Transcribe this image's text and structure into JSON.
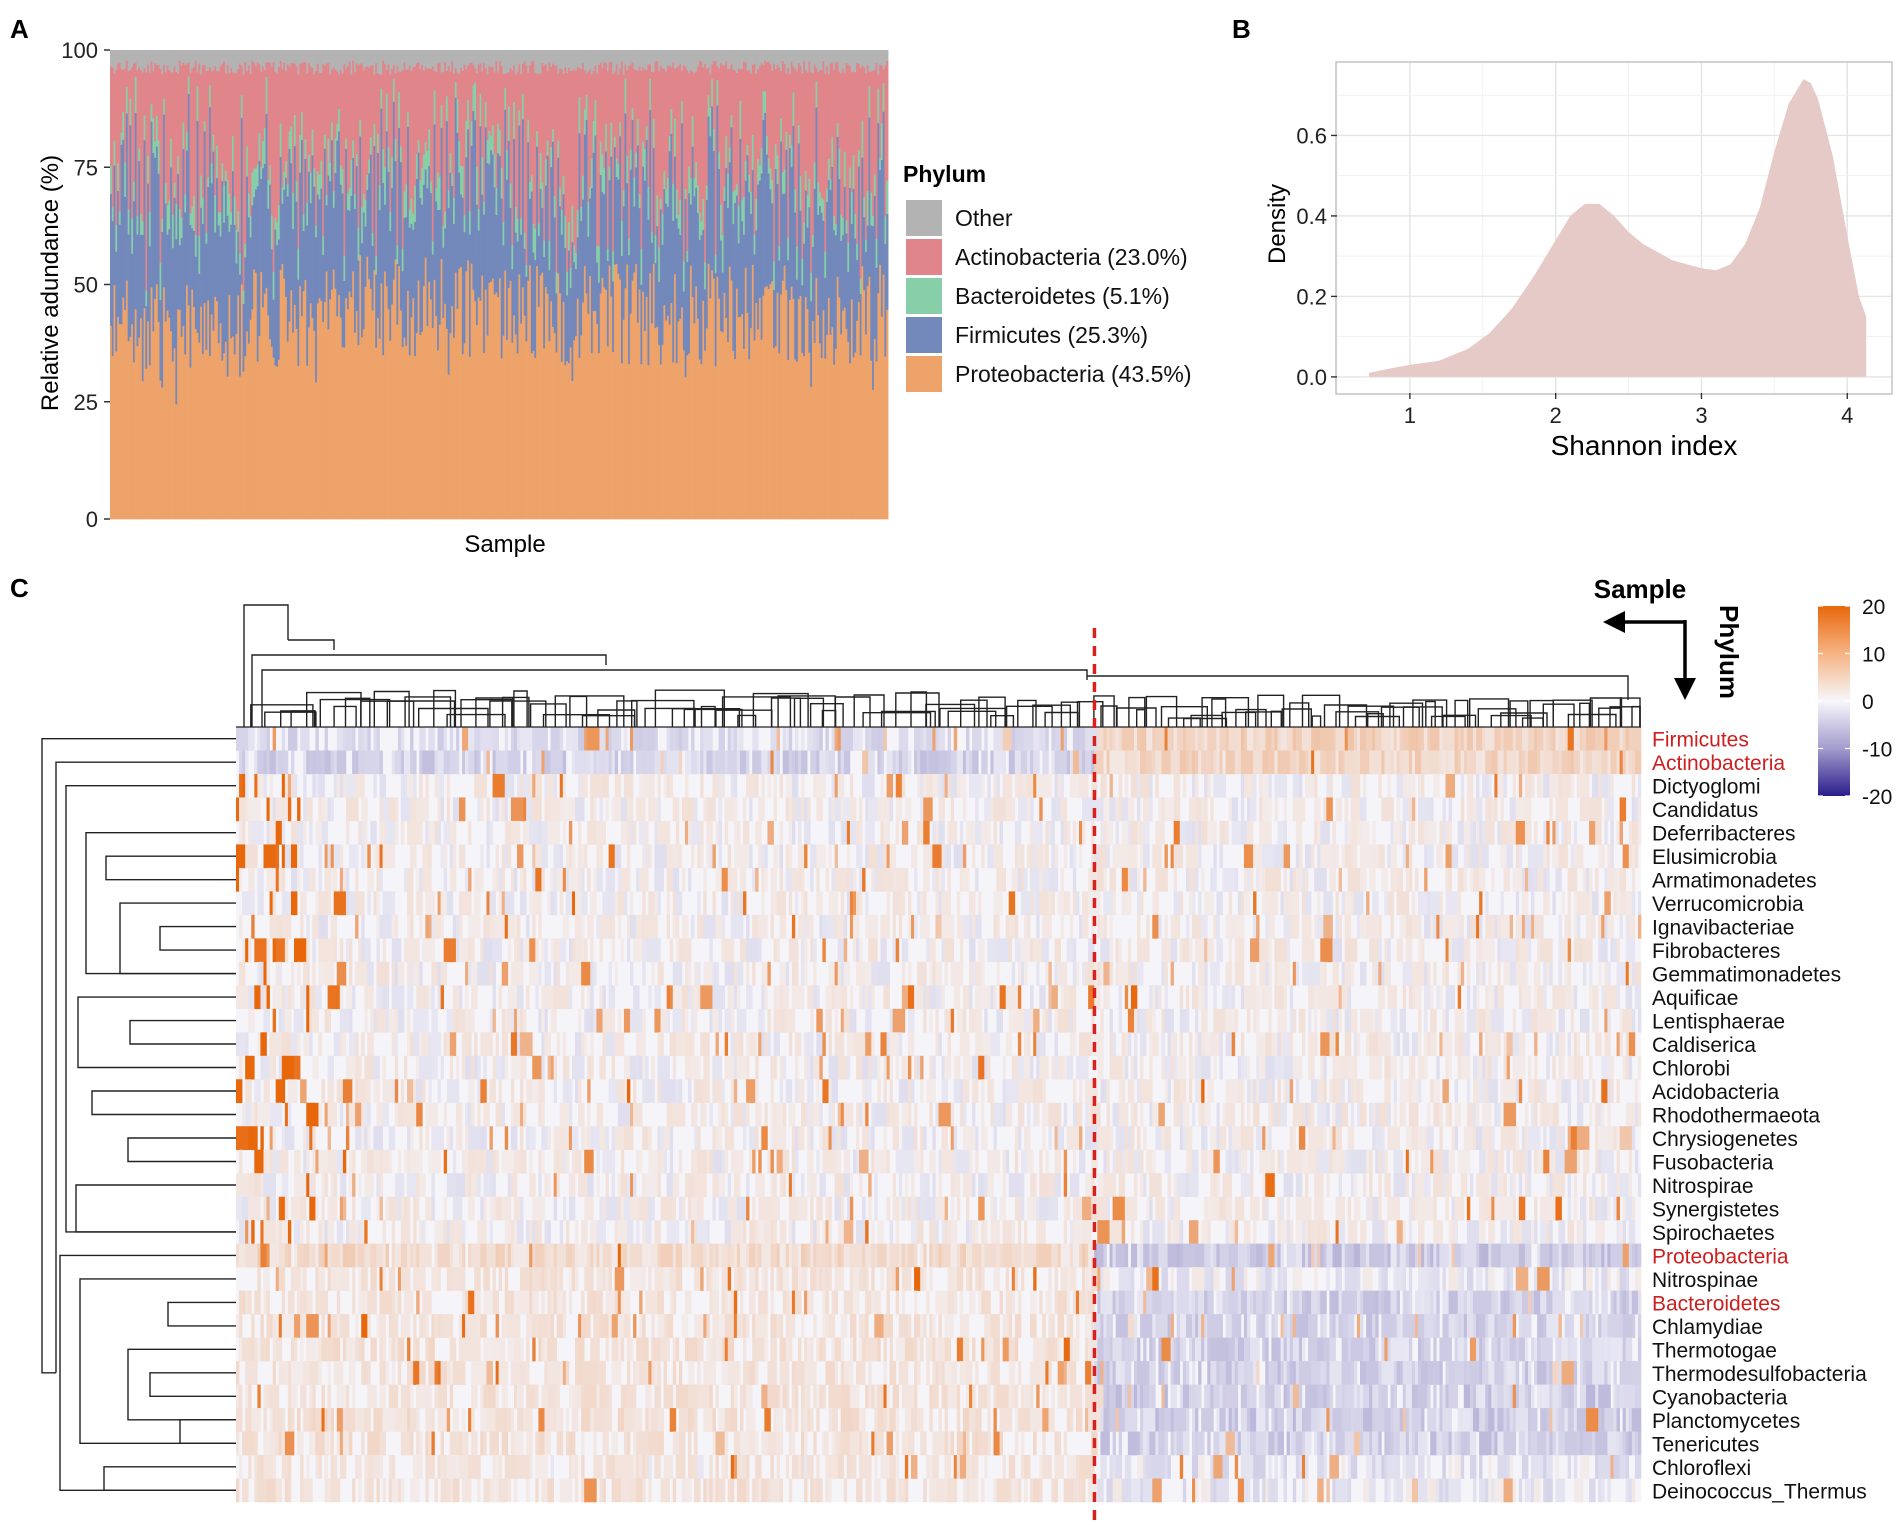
{
  "panels": {
    "a": "A",
    "b": "B",
    "c": "C"
  },
  "colors": {
    "other": "#b3b3b3",
    "actinobacteria": "#e0868b",
    "bacteroidetes": "#86cfa8",
    "firmicutes": "#7388bb",
    "proteobacteria": "#eda36a",
    "density_fill": "#e6cac7",
    "highlight": "#cc1f1f",
    "divider": "#d8201f",
    "heat_high": "#e8670b",
    "heat_mid": "#f4f4f9",
    "heat_low": "#2a1d8c"
  },
  "chart_data": [
    {
      "id": "A",
      "type": "bar",
      "stacked": true,
      "title": "",
      "xlabel": "Sample",
      "ylabel": "Relative adundance (%)",
      "ylim": [
        0,
        100
      ],
      "yticks": [
        0,
        25,
        50,
        75,
        100
      ],
      "n_samples": 440,
      "legend_title": "Phylum",
      "legend_position": "right",
      "series": [
        {
          "name": "Proteobacteria (43.5%)",
          "key": "proteobacteria",
          "mean": 43.5
        },
        {
          "name": "Firmicutes (25.3%)",
          "key": "firmicutes",
          "mean": 25.3
        },
        {
          "name": "Bacteroidetes (5.1%)",
          "key": "bacteroidetes",
          "mean": 5.1
        },
        {
          "name": "Actinobacteria (23.0%)",
          "key": "actinobacteria",
          "mean": 23.0
        },
        {
          "name": "Other",
          "key": "other",
          "mean": 3.1
        }
      ],
      "legend_order": [
        "Other",
        "Actinobacteria (23.0%)",
        "Bacteroidetes (5.1%)",
        "Firmicutes (25.3%)",
        "Proteobacteria (43.5%)"
      ]
    },
    {
      "id": "B",
      "type": "area",
      "title": "",
      "xlabel": "Shannon index",
      "ylabel": "Density",
      "xlim": [
        0.5,
        4.3
      ],
      "ylim": [
        -0.04,
        0.78
      ],
      "xticks": [
        1,
        2,
        3,
        4
      ],
      "yticks": [
        0.0,
        0.2,
        0.4,
        0.6
      ],
      "ytick_labels": [
        "0.0",
        "0.2",
        "0.4",
        "0.6"
      ],
      "grid": true,
      "x": [
        0.72,
        0.85,
        1.0,
        1.2,
        1.4,
        1.55,
        1.7,
        1.85,
        2.0,
        2.1,
        2.2,
        2.3,
        2.4,
        2.5,
        2.6,
        2.7,
        2.8,
        2.9,
        3.0,
        3.1,
        3.2,
        3.3,
        3.4,
        3.5,
        3.6,
        3.7,
        3.75,
        3.8,
        3.9,
        4.0,
        4.08,
        4.13
      ],
      "y": [
        0.01,
        0.02,
        0.03,
        0.04,
        0.07,
        0.11,
        0.17,
        0.25,
        0.34,
        0.4,
        0.43,
        0.43,
        0.4,
        0.36,
        0.33,
        0.31,
        0.29,
        0.28,
        0.27,
        0.265,
        0.28,
        0.33,
        0.42,
        0.56,
        0.68,
        0.74,
        0.73,
        0.69,
        0.55,
        0.35,
        0.2,
        0.15
      ]
    },
    {
      "id": "C",
      "type": "heatmap",
      "title": "",
      "col_axis_label": "Sample",
      "row_axis_label": "Phylum",
      "n_columns": 460,
      "divider_fraction": 0.611,
      "colorbar": {
        "min": -20,
        "max": 20,
        "ticks": [
          20,
          10,
          0,
          -10,
          -20
        ]
      },
      "rows": [
        {
          "name": "Firmicutes",
          "highlight": true
        },
        {
          "name": "Actinobacteria",
          "highlight": true
        },
        {
          "name": "Dictyoglomi",
          "highlight": false
        },
        {
          "name": "Candidatus",
          "highlight": false
        },
        {
          "name": "Deferribacteres",
          "highlight": false
        },
        {
          "name": "Elusimicrobia",
          "highlight": false
        },
        {
          "name": "Armatimonadetes",
          "highlight": false
        },
        {
          "name": "Verrucomicrobia",
          "highlight": false
        },
        {
          "name": "Ignavibacteriae",
          "highlight": false
        },
        {
          "name": "Fibrobacteres",
          "highlight": false
        },
        {
          "name": "Gemmatimonadetes",
          "highlight": false
        },
        {
          "name": "Aquificae",
          "highlight": false
        },
        {
          "name": "Lentisphaerae",
          "highlight": false
        },
        {
          "name": "Caldiserica",
          "highlight": false
        },
        {
          "name": "Chlorobi",
          "highlight": false
        },
        {
          "name": "Acidobacteria",
          "highlight": false
        },
        {
          "name": "Rhodothermaeota",
          "highlight": false
        },
        {
          "name": "Chrysiogenetes",
          "highlight": false
        },
        {
          "name": "Fusobacteria",
          "highlight": false
        },
        {
          "name": "Nitrospirae",
          "highlight": false
        },
        {
          "name": "Synergistetes",
          "highlight": false
        },
        {
          "name": "Spirochaetes",
          "highlight": false
        },
        {
          "name": "Proteobacteria",
          "highlight": true
        },
        {
          "name": "Nitrospinae",
          "highlight": false
        },
        {
          "name": "Bacteroidetes",
          "highlight": true
        },
        {
          "name": "Chlamydiae",
          "highlight": false
        },
        {
          "name": "Thermotogae",
          "highlight": false
        },
        {
          "name": "Thermodesulfobacteria",
          "highlight": false
        },
        {
          "name": "Cyanobacteria",
          "highlight": false
        },
        {
          "name": "Planctomycetes",
          "highlight": false
        },
        {
          "name": "Tenericutes",
          "highlight": false
        },
        {
          "name": "Chloroflexi",
          "highlight": false
        },
        {
          "name": "Deinococcus_Thermus",
          "highlight": false
        }
      ]
    }
  ]
}
